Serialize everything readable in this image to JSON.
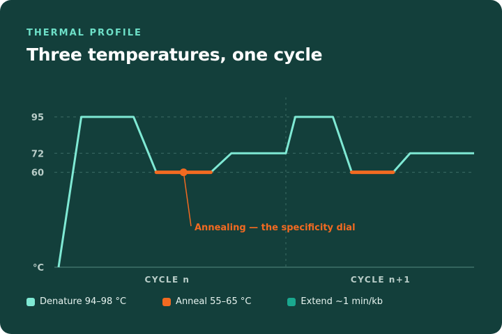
{
  "header": {
    "eyebrow": "THERMAL PROFILE",
    "title": "Three temperatures, one cycle"
  },
  "colors": {
    "background": "#133f3b",
    "trace": "#7fe9d4",
    "anneal": "#f26a21",
    "extend": "#1aa88f",
    "grid": "#3c6d66",
    "axis_text": "#b9cdc8"
  },
  "chart_data": {
    "type": "line",
    "title": "Three temperatures, one cycle",
    "ylabel": "°C",
    "y_ticks": [
      95,
      72,
      60
    ],
    "ylim": [
      0,
      95
    ],
    "cycles": [
      "CYCLE n",
      "CYCLE n+1"
    ],
    "series": [
      {
        "id": "temperature",
        "points_cycle_n": [
          [
            0.0,
            0
          ],
          [
            0.1,
            95
          ],
          [
            0.33,
            95
          ],
          [
            0.43,
            60
          ],
          [
            0.67,
            60
          ],
          [
            0.76,
            72
          ],
          [
            1.0,
            72
          ]
        ],
        "points_cycle_n1": [
          [
            0.0,
            72
          ],
          [
            0.05,
            95
          ],
          [
            0.25,
            95
          ],
          [
            0.35,
            60
          ],
          [
            0.57,
            60
          ],
          [
            0.66,
            72
          ],
          [
            1.0,
            72
          ]
        ]
      }
    ],
    "highlight": {
      "cycle_n": [
        0.43,
        0.67
      ],
      "cycle_n1": [
        0.35,
        0.57
      ],
      "value": 60
    },
    "annotation": "Annealing — the specificity dial",
    "legend": [
      {
        "label": "Denature 94–98 °C",
        "color": "#7fe9d4"
      },
      {
        "label": "Anneal 55–65 °C",
        "color": "#f26a21"
      },
      {
        "label": "Extend ~1 min/kb",
        "color": "#1aa88f"
      }
    ],
    "grid": true
  }
}
